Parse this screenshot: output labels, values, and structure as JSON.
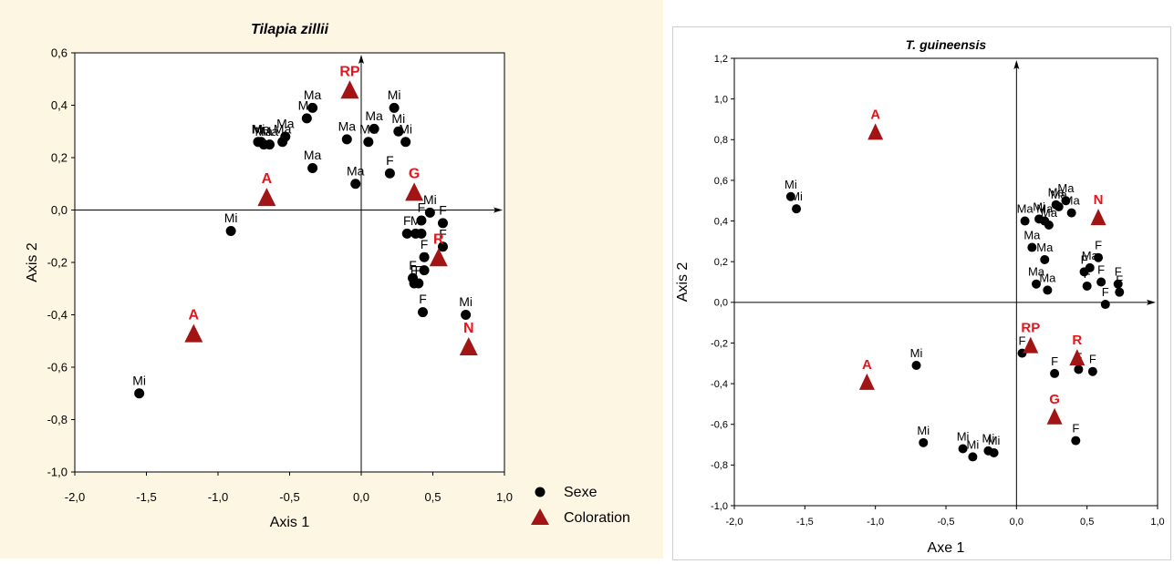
{
  "colors": {
    "panel_left_bg": "#fdf6e3",
    "plot_bg": "#ffffff",
    "sexe_marker": "#000000",
    "coloration_marker": "#a31515",
    "coloration_label": "#e8141b"
  },
  "legend": {
    "sexe": "Sexe",
    "coloration": "Coloration",
    "sexe_icon": "filled-circle",
    "coloration_icon": "filled-triangle",
    "placement": "bottom-right outside plot"
  },
  "chart_data": [
    {
      "type": "scatter",
      "title": "Tilapia zillii",
      "xlabel": "Axis 1",
      "ylabel": "Axis 2",
      "xlim": [
        -2.0,
        1.0
      ],
      "ylim": [
        -1.0,
        0.6
      ],
      "xticks": [
        "-2,0",
        "-1,5",
        "-1,0",
        "-0,5",
        "0,0",
        "0,5",
        "1,0"
      ],
      "yticks": [
        "-1,0",
        "-0,8",
        "-0,6",
        "-0,4",
        "-0,2",
        "0,0",
        "0,2",
        "0,4",
        "0,6"
      ],
      "grid": false,
      "series": [
        {
          "name": "Sexe",
          "marker": "circle",
          "points": [
            {
              "x": -1.55,
              "y": -0.7,
              "label": "Mi"
            },
            {
              "x": -0.91,
              "y": -0.08,
              "label": "Mi"
            },
            {
              "x": -0.72,
              "y": 0.26,
              "label": "Mi"
            },
            {
              "x": -0.7,
              "y": 0.26,
              "label": "Ma"
            },
            {
              "x": -0.68,
              "y": 0.25,
              "label": "Ma"
            },
            {
              "x": -0.64,
              "y": 0.25,
              "label": "Ma"
            },
            {
              "x": -0.55,
              "y": 0.26,
              "label": "Ma"
            },
            {
              "x": -0.53,
              "y": 0.28,
              "label": "Ma"
            },
            {
              "x": -0.38,
              "y": 0.35,
              "label": "Ma"
            },
            {
              "x": -0.34,
              "y": 0.39,
              "label": "Ma"
            },
            {
              "x": -0.34,
              "y": 0.16,
              "label": "Ma"
            },
            {
              "x": -0.1,
              "y": 0.27,
              "label": "Ma"
            },
            {
              "x": -0.04,
              "y": 0.1,
              "label": "Ma"
            },
            {
              "x": 0.05,
              "y": 0.26,
              "label": "Ma"
            },
            {
              "x": 0.09,
              "y": 0.31,
              "label": "Ma"
            },
            {
              "x": 0.23,
              "y": 0.39,
              "label": "Mi"
            },
            {
              "x": 0.26,
              "y": 0.3,
              "label": "Mi"
            },
            {
              "x": 0.31,
              "y": 0.26,
              "label": "Mi"
            },
            {
              "x": 0.2,
              "y": 0.14,
              "label": "F"
            },
            {
              "x": 0.32,
              "y": -0.09,
              "label": "F"
            },
            {
              "x": 0.38,
              "y": -0.09,
              "label": "M"
            },
            {
              "x": 0.42,
              "y": -0.04,
              "label": "F"
            },
            {
              "x": 0.48,
              "y": -0.01,
              "label": "Mi"
            },
            {
              "x": 0.57,
              "y": -0.05,
              "label": "F"
            },
            {
              "x": 0.42,
              "y": -0.09,
              "label": "F"
            },
            {
              "x": 0.44,
              "y": -0.18,
              "label": "F"
            },
            {
              "x": 0.44,
              "y": -0.23,
              "label": "F"
            },
            {
              "x": 0.57,
              "y": -0.14,
              "label": "F"
            },
            {
              "x": 0.36,
              "y": -0.26,
              "label": "F"
            },
            {
              "x": 0.37,
              "y": -0.28,
              "label": "F"
            },
            {
              "x": 0.4,
              "y": -0.28,
              "label": "F"
            },
            {
              "x": 0.43,
              "y": -0.39,
              "label": "F"
            },
            {
              "x": 0.73,
              "y": -0.4,
              "label": "Mi"
            }
          ]
        },
        {
          "name": "Coloration",
          "marker": "triangle",
          "points": [
            {
              "x": -0.08,
              "y": 0.46,
              "label": "RP"
            },
            {
              "x": -0.66,
              "y": 0.05,
              "label": "A"
            },
            {
              "x": 0.37,
              "y": 0.07,
              "label": "G"
            },
            {
              "x": 0.54,
              "y": -0.18,
              "label": "R"
            },
            {
              "x": -1.17,
              "y": -0.47,
              "label": "A"
            },
            {
              "x": 0.75,
              "y": -0.52,
              "label": "N"
            }
          ]
        }
      ]
    },
    {
      "type": "scatter",
      "title": "T. guineensis",
      "xlabel": "Axe 1",
      "ylabel": "Axis 2",
      "xlim": [
        -2.0,
        1.0
      ],
      "ylim": [
        -1.0,
        1.2
      ],
      "xticks": [
        "-2,0",
        "-1,5",
        "-1,0",
        "-0,5",
        "0,0",
        "0,5",
        "1,0"
      ],
      "yticks": [
        "-1,0",
        "-0,8",
        "-0,6",
        "-0,4",
        "-0,2",
        "0,0",
        "0,2",
        "0,4",
        "0,6",
        "0,8",
        "1,0",
        "1,2"
      ],
      "grid": false,
      "series": [
        {
          "name": "Sexe",
          "marker": "circle",
          "points": [
            {
              "x": -1.6,
              "y": 0.52,
              "label": "Mi"
            },
            {
              "x": -1.56,
              "y": 0.46,
              "label": "Mi"
            },
            {
              "x": 0.06,
              "y": 0.4,
              "label": "Ma"
            },
            {
              "x": 0.16,
              "y": 0.41,
              "label": "Mi"
            },
            {
              "x": 0.2,
              "y": 0.4,
              "label": "Ma"
            },
            {
              "x": 0.23,
              "y": 0.38,
              "label": "Ma"
            },
            {
              "x": 0.28,
              "y": 0.48,
              "label": "Ma"
            },
            {
              "x": 0.3,
              "y": 0.47,
              "label": "Ma"
            },
            {
              "x": 0.35,
              "y": 0.5,
              "label": "Ma"
            },
            {
              "x": 0.39,
              "y": 0.44,
              "label": "Ma"
            },
            {
              "x": 0.11,
              "y": 0.27,
              "label": "Ma"
            },
            {
              "x": 0.2,
              "y": 0.21,
              "label": "Ma"
            },
            {
              "x": 0.14,
              "y": 0.09,
              "label": "Ma"
            },
            {
              "x": 0.22,
              "y": 0.06,
              "label": "Ma"
            },
            {
              "x": 0.48,
              "y": 0.15,
              "label": "F"
            },
            {
              "x": 0.52,
              "y": 0.17,
              "label": "Ma"
            },
            {
              "x": 0.58,
              "y": 0.22,
              "label": "F"
            },
            {
              "x": 0.6,
              "y": 0.1,
              "label": "F"
            },
            {
              "x": 0.5,
              "y": 0.08,
              "label": "F"
            },
            {
              "x": 0.72,
              "y": 0.09,
              "label": "F"
            },
            {
              "x": 0.73,
              "y": 0.05,
              "label": "F"
            },
            {
              "x": 0.63,
              "y": -0.01,
              "label": "F"
            },
            {
              "x": -0.71,
              "y": -0.31,
              "label": "Mi"
            },
            {
              "x": 0.04,
              "y": -0.25,
              "label": "F"
            },
            {
              "x": 0.27,
              "y": -0.35,
              "label": "F"
            },
            {
              "x": 0.44,
              "y": -0.33,
              "label": "F"
            },
            {
              "x": 0.54,
              "y": -0.34,
              "label": "F"
            },
            {
              "x": 0.42,
              "y": -0.68,
              "label": "F"
            },
            {
              "x": -0.66,
              "y": -0.69,
              "label": "Mi"
            },
            {
              "x": -0.38,
              "y": -0.72,
              "label": "Mi"
            },
            {
              "x": -0.31,
              "y": -0.76,
              "label": "Mi"
            },
            {
              "x": -0.2,
              "y": -0.73,
              "label": "Mi"
            },
            {
              "x": -0.16,
              "y": -0.74,
              "label": "Mi"
            }
          ]
        },
        {
          "name": "Coloration",
          "marker": "triangle",
          "points": [
            {
              "x": -1.0,
              "y": 0.84,
              "label": "A"
            },
            {
              "x": 0.58,
              "y": 0.42,
              "label": "N"
            },
            {
              "x": 0.1,
              "y": -0.21,
              "label": "RP"
            },
            {
              "x": 0.43,
              "y": -0.27,
              "label": "R"
            },
            {
              "x": -1.06,
              "y": -0.39,
              "label": "A"
            },
            {
              "x": 0.27,
              "y": -0.56,
              "label": "G"
            }
          ]
        }
      ]
    }
  ]
}
